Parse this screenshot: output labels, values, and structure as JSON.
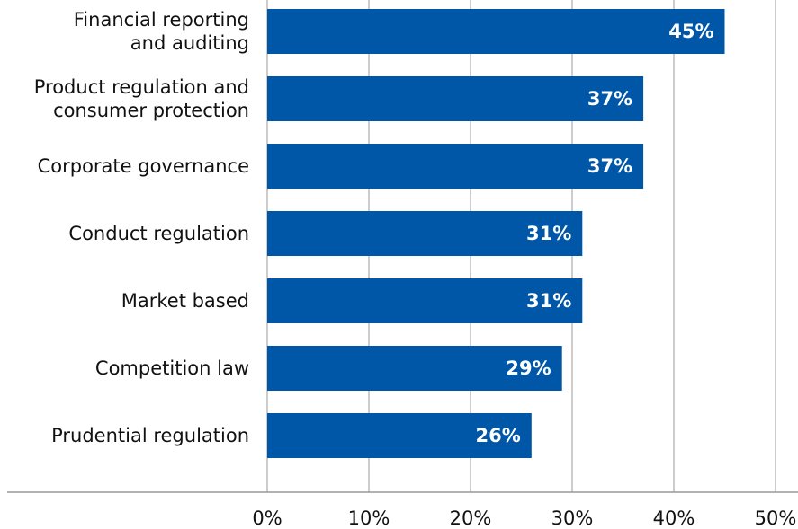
{
  "chart_data": {
    "type": "bar",
    "orientation": "horizontal",
    "categories": [
      "Financial reporting\nand auditing",
      "Product regulation and\nconsumer protection",
      "Corporate governance",
      "Conduct regulation",
      "Market based",
      "Competition law",
      "Prudential regulation"
    ],
    "values": [
      45,
      37,
      37,
      31,
      31,
      29,
      26
    ],
    "value_labels": [
      "45%",
      "37%",
      "37%",
      "31%",
      "31%",
      "29%",
      "26%"
    ],
    "color": "#0057a8",
    "xlim": [
      0,
      50
    ],
    "xticks": [
      {
        "value": 0,
        "label": "0%"
      },
      {
        "value": 10,
        "label": "10%"
      },
      {
        "value": 20,
        "label": "20%"
      },
      {
        "value": 30,
        "label": "30%"
      },
      {
        "value": 40,
        "label": "40%"
      },
      {
        "value": 50,
        "label": "50%"
      }
    ],
    "grid": true
  }
}
